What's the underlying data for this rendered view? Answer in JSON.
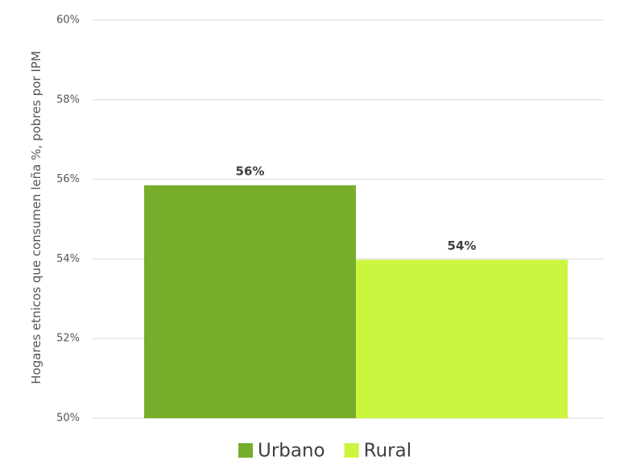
{
  "chart_data": {
    "type": "bar",
    "y_label": "Hogares etnicos que consumen leña %, pobres por IPM",
    "series": [
      {
        "name": "Urbano",
        "color": "#76ae2c",
        "values": [
          55.85
        ],
        "value_labels": [
          "56%"
        ]
      },
      {
        "name": "Rural",
        "color": "#ccf53f",
        "values": [
          53.98
        ],
        "value_labels": [
          "54%"
        ]
      }
    ],
    "ylim": [
      50,
      60
    ],
    "yticks": [
      {
        "value": 50,
        "label": "50%"
      },
      {
        "value": 52,
        "label": "52%"
      },
      {
        "value": 54,
        "label": "54%"
      },
      {
        "value": 56,
        "label": "56%"
      },
      {
        "value": 58,
        "label": "58%"
      },
      {
        "value": 60,
        "label": "60%"
      }
    ],
    "grid": true,
    "legend": "bottom"
  }
}
